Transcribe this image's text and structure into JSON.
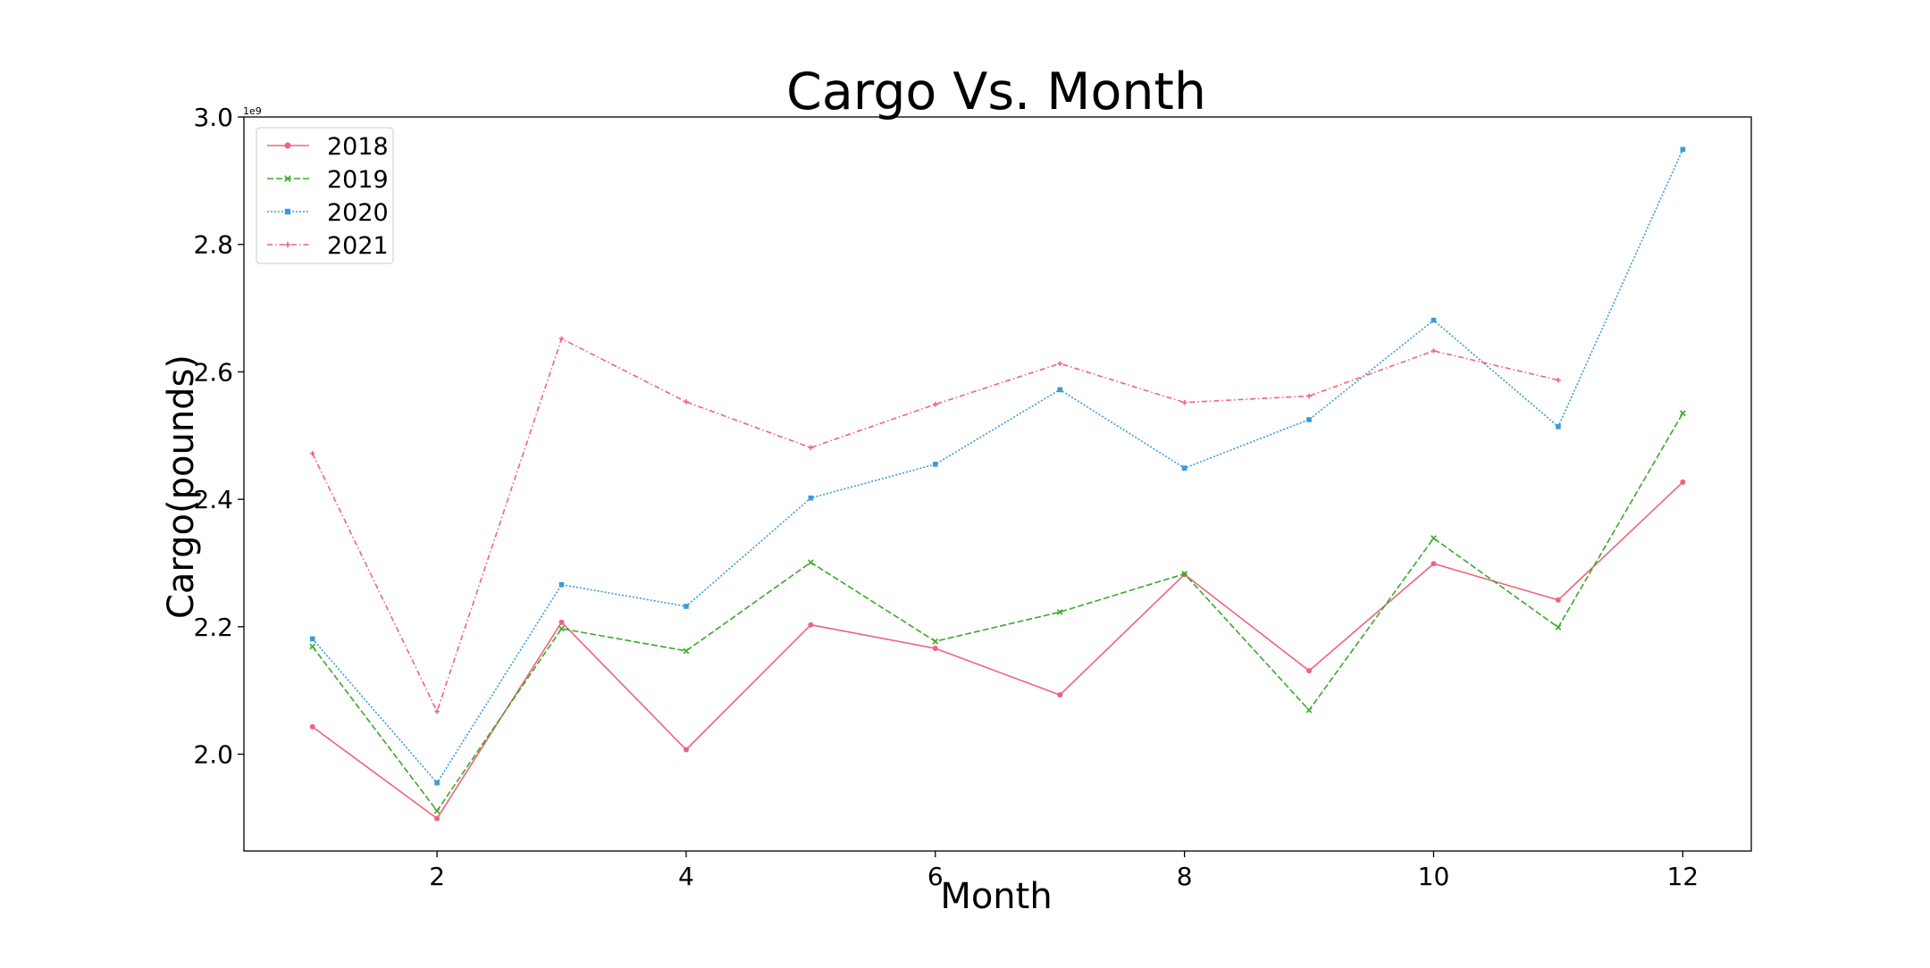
{
  "chart_data": {
    "type": "line",
    "title": "Cargo Vs. Month",
    "xlabel": "Month",
    "ylabel": "Cargo(pounds)",
    "y_offset_label": "1e9",
    "xlim": [
      0.45,
      12.55
    ],
    "ylim": [
      1848000000.0,
      3000000000.0
    ],
    "x_ticks": [
      2,
      4,
      6,
      8,
      10,
      12
    ],
    "x_tick_labels": [
      "2",
      "4",
      "6",
      "8",
      "10",
      "12"
    ],
    "y_ticks": [
      2000000000.0,
      2200000000.0,
      2400000000.0,
      2600000000.0,
      2800000000.0,
      3000000000.0
    ],
    "y_tick_labels": [
      "2.0",
      "2.2",
      "2.4",
      "2.6",
      "2.8",
      "3.0"
    ],
    "grid": false,
    "legend_position": "top-left",
    "x": [
      1,
      2,
      3,
      4,
      5,
      6,
      7,
      8,
      9,
      10,
      11,
      12
    ],
    "series": [
      {
        "name": "2018",
        "color": "#f0637c",
        "line_style": "solid",
        "marker": "circle",
        "values": [
          2043000000.0,
          1899000000.0,
          2207000000.0,
          2007000000.0,
          2203000000.0,
          2166000000.0,
          2093000000.0,
          2282000000.0,
          2131000000.0,
          2299000000.0,
          2242000000.0,
          2427000000.0
        ]
      },
      {
        "name": "2019",
        "color": "#3ba82b",
        "line_style": "dashed",
        "marker": "x",
        "values": [
          2169000000.0,
          1911000000.0,
          2197000000.0,
          2162000000.0,
          2301000000.0,
          2177000000.0,
          2223000000.0,
          2283000000.0,
          2069000000.0,
          2339000000.0,
          2199000000.0,
          2535000000.0
        ]
      },
      {
        "name": "2020",
        "color": "#3a9ad9",
        "line_style": "dotted",
        "marker": "square",
        "values": [
          2181000000.0,
          1955000000.0,
          2266000000.0,
          2232000000.0,
          2402000000.0,
          2455000000.0,
          2572000000.0,
          2449000000.0,
          2525000000.0,
          2681000000.0,
          2514000000.0,
          2949000000.0
        ]
      },
      {
        "name": "2021",
        "color": "#f0637c",
        "line_style": "dashdot",
        "marker": "plus",
        "values": [
          2472000000.0,
          2067000000.0,
          2652000000.0,
          2553000000.0,
          2481000000.0,
          2549000000.0,
          2613000000.0,
          2552000000.0,
          2562000000.0,
          2633000000.0,
          2587000000.0,
          null
        ]
      }
    ]
  }
}
